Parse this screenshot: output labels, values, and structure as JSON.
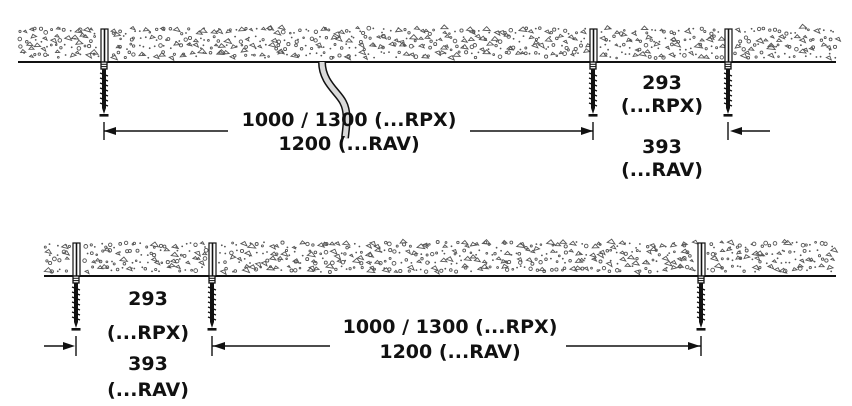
{
  "colors": {
    "ink": "#111111",
    "ceiling_texture": "#555555",
    "cable_fill": "#d9d9d9",
    "background": "#ffffff"
  },
  "icons": {
    "screw": "screw-icon",
    "cable": "cable-icon"
  },
  "diagram_top": {
    "main_dimension": {
      "line1": "1000 / 1300 (...RPX)",
      "line2": "1200 (...RAV)"
    },
    "end_dimension": {
      "line1": "293",
      "line2": "(...RPX)",
      "line3": "393",
      "line4": "(...RAV)"
    }
  },
  "diagram_bottom": {
    "main_dimension": {
      "line1": "1000 / 1300 (...RPX)",
      "line2": "1200 (...RAV)"
    },
    "end_dimension": {
      "line1": "293",
      "line2": "(...RPX)",
      "line3": "393",
      "line4": "(...RAV)"
    }
  }
}
